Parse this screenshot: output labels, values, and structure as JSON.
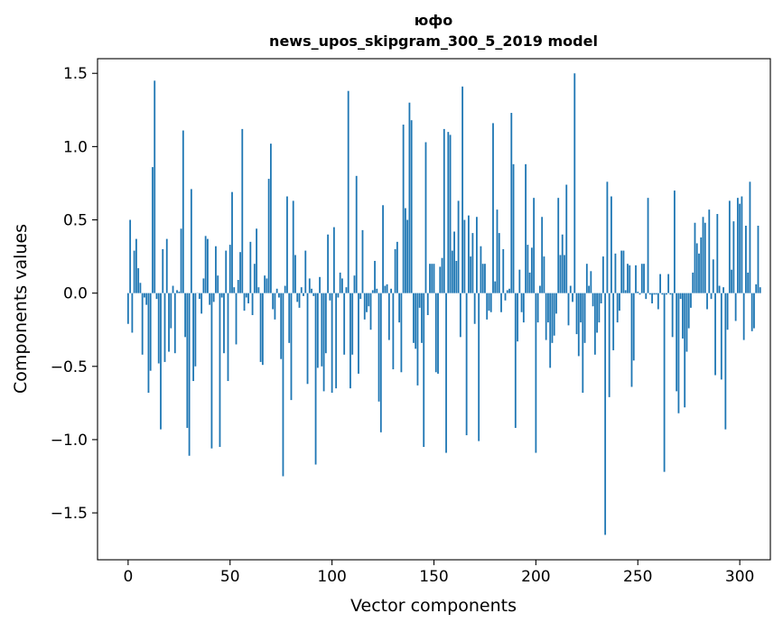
{
  "chart_data": {
    "type": "bar",
    "title_line1": "юфо",
    "title_line2": "news_upos_skipgram_300_5_2019 model",
    "xlabel": "Vector components",
    "ylabel": "Components values",
    "xlim": [
      -15,
      315
    ],
    "ylim": [
      -1.82,
      1.6
    ],
    "x_ticks": [
      0,
      50,
      100,
      150,
      200,
      250,
      300
    ],
    "y_ticks": [
      1.5,
      1.0,
      0.5,
      0.0,
      -0.5,
      -1.0,
      -1.5
    ],
    "y_tick_labels": [
      "1.5",
      "1.0",
      "0.5",
      "0.0",
      "−0.5",
      "−1.0",
      "−1.5"
    ],
    "grid": false,
    "bar_color": "#1f77b4",
    "series": [
      {
        "values": [
          -0.21,
          0.5,
          -0.27,
          0.29,
          0.37,
          0.17,
          0.07,
          -0.42,
          -0.03,
          -0.08,
          -0.68,
          -0.53,
          0.86,
          1.45,
          -0.04,
          -0.48,
          -0.93,
          0.3,
          -0.47,
          0.37,
          -0.4,
          -0.24,
          0.05,
          -0.41,
          0.02,
          0.01,
          0.44,
          1.11,
          -0.3,
          -0.92,
          -1.11,
          0.71,
          -0.6,
          -0.5,
          0.0,
          -0.04,
          -0.14,
          0.1,
          0.39,
          0.37,
          -0.08,
          -1.06,
          -0.06,
          0.32,
          0.12,
          -1.05,
          -0.03,
          -0.41,
          0.29,
          -0.6,
          0.33,
          0.69,
          0.04,
          -0.35,
          0.09,
          0.28,
          1.12,
          -0.12,
          -0.03,
          -0.07,
          0.35,
          -0.15,
          0.2,
          0.44,
          0.04,
          -0.47,
          -0.49,
          0.12,
          0.1,
          0.78,
          1.02,
          -0.11,
          -0.18,
          0.03,
          -0.03,
          -0.45,
          -1.25,
          0.05,
          0.66,
          -0.34,
          -0.73,
          0.63,
          0.26,
          -0.06,
          -0.1,
          0.04,
          -0.02,
          0.29,
          -0.62,
          0.1,
          0.03,
          -0.02,
          -1.17,
          -0.51,
          0.11,
          -0.5,
          -0.67,
          -0.41,
          0.4,
          -0.05,
          -0.68,
          0.45,
          -0.65,
          -0.03,
          0.14,
          0.1,
          -0.42,
          0.04,
          1.38,
          -0.65,
          -0.42,
          0.12,
          0.8,
          -0.55,
          -0.04,
          0.43,
          -0.18,
          -0.13,
          -0.09,
          -0.25,
          0.02,
          0.22,
          0.03,
          -0.74,
          -0.95,
          0.6,
          0.05,
          0.06,
          -0.32,
          0.03,
          -0.52,
          0.3,
          0.35,
          -0.2,
          -0.54,
          1.15,
          0.58,
          0.5,
          1.3,
          1.18,
          -0.34,
          -0.38,
          -0.63,
          -0.1,
          -0.34,
          -1.05,
          1.03,
          -0.15,
          0.2,
          0.2,
          0.2,
          -0.54,
          -0.55,
          0.18,
          0.24,
          1.12,
          -1.09,
          1.1,
          1.08,
          0.29,
          0.42,
          0.22,
          0.63,
          -0.3,
          1.41,
          0.5,
          -0.97,
          0.53,
          0.25,
          0.41,
          -0.21,
          0.52,
          -1.01,
          0.32,
          0.2,
          0.2,
          -0.18,
          -0.12,
          -0.13,
          1.16,
          0.08,
          0.57,
          0.41,
          -0.13,
          0.3,
          -0.05,
          0.02,
          0.03,
          1.23,
          0.88,
          -0.92,
          -0.33,
          0.16,
          -0.13,
          -0.2,
          0.88,
          0.33,
          0.14,
          0.31,
          0.65,
          -1.09,
          -0.2,
          0.05,
          0.52,
          0.25,
          -0.32,
          -0.2,
          -0.51,
          -0.34,
          -0.29,
          -0.14,
          0.65,
          0.26,
          0.4,
          0.26,
          0.74,
          -0.22,
          0.05,
          -0.06,
          1.5,
          -0.28,
          -0.43,
          -0.2,
          -0.68,
          -0.34,
          0.2,
          0.05,
          0.15,
          -0.09,
          -0.42,
          -0.27,
          -0.2,
          -0.07,
          0.25,
          -1.65,
          0.76,
          -0.71,
          0.66,
          -0.39,
          0.27,
          -0.2,
          -0.12,
          0.29,
          0.29,
          0.02,
          0.2,
          0.19,
          -0.64,
          -0.46,
          0.19,
          0.01,
          -0.01,
          0.2,
          0.2,
          -0.04,
          0.65,
          -0.01,
          -0.07,
          -0.01,
          -0.01,
          -0.11,
          0.13,
          -0.01,
          -1.22,
          -0.01,
          0.13,
          -0.01,
          -0.3,
          0.7,
          -0.67,
          -0.82,
          -0.04,
          -0.31,
          -0.78,
          -0.4,
          -0.24,
          -0.1,
          0.14,
          0.48,
          0.34,
          0.27,
          0.38,
          0.52,
          0.48,
          -0.11,
          0.57,
          -0.04,
          0.23,
          -0.56,
          0.54,
          0.05,
          -0.59,
          0.04,
          -0.93,
          -0.25,
          0.63,
          0.16,
          0.49,
          -0.19,
          0.65,
          0.61,
          0.66,
          -0.32,
          0.46,
          0.14,
          0.76,
          -0.26,
          -0.24,
          0.06,
          0.46,
          0.04
        ]
      }
    ]
  }
}
